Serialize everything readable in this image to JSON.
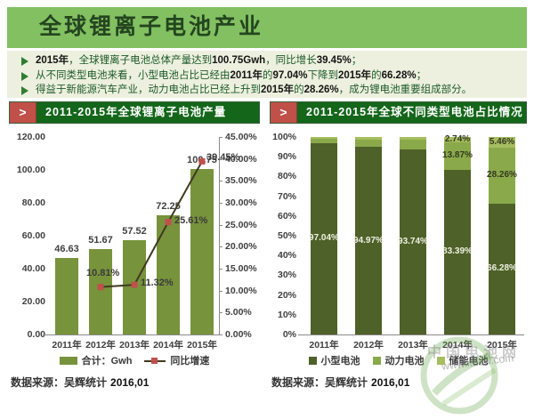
{
  "header": {
    "title": "全球锂离子电池产业"
  },
  "bullets": [
    {
      "segments": [
        {
          "t": "2015年",
          "b": true
        },
        {
          "t": "，全球锂离子电池总体产量达到",
          "b": false
        },
        {
          "t": "100.75Gwh",
          "b": true
        },
        {
          "t": "，同比增长",
          "b": false
        },
        {
          "t": "39.45%",
          "b": true
        },
        {
          "t": "；",
          "b": false
        }
      ]
    },
    {
      "segments": [
        {
          "t": "从不同类型电池来看，小型电池占比已经由",
          "b": false
        },
        {
          "t": "2011年",
          "b": true
        },
        {
          "t": "的",
          "b": false
        },
        {
          "t": "97.04%",
          "b": true
        },
        {
          "t": "下降到",
          "b": false
        },
        {
          "t": "2015年",
          "b": true
        },
        {
          "t": "的",
          "b": false
        },
        {
          "t": "66.28%",
          "b": true
        },
        {
          "t": "；",
          "b": false
        }
      ]
    },
    {
      "segments": [
        {
          "t": "得益于新能源汽车产业，动力电池占比已经上升到",
          "b": false
        },
        {
          "t": "2015年",
          "b": true
        },
        {
          "t": "的",
          "b": false
        },
        {
          "t": "28.26%",
          "b": true
        },
        {
          "t": "，成为锂电池重要组成部分。",
          "b": false
        }
      ]
    }
  ],
  "left_panel": {
    "marker": ">",
    "title": "2011-2015年全球锂离子电池产量",
    "source_label": "数据来源：吴辉统计",
    "source_date": "2016,01"
  },
  "right_panel": {
    "marker": ">",
    "title": "2011-2015年全球不同类型电池占比情况",
    "source_label": "数据来源：吴辉统计",
    "source_date": "2016,01"
  },
  "watermark": {
    "site": "中国电池网",
    "url": "www.itdcw.com"
  },
  "colors": {
    "header_green": "#82c062",
    "title_bar_green": "#14661a",
    "title_marker_red": "#c05048",
    "bar_olive": "#77933c",
    "line_dark": "#403a20",
    "marker_red": "#c0504d",
    "stack_dark": "#4e6128",
    "stack_mid": "#8aa94a",
    "stack_light": "#a6bd60"
  },
  "chart_data": [
    {
      "type": "bar",
      "subtype": "bar-with-line-overlay",
      "title": "2011-2015年全球锂离子电池产量",
      "categories": [
        "2011年",
        "2012年",
        "2013年",
        "2014年",
        "2015年"
      ],
      "series": [
        {
          "name": "合计：Gwh",
          "kind": "bar",
          "axis": "left",
          "color": "#77933c",
          "values": [
            46.63,
            51.67,
            57.52,
            72.25,
            100.75
          ],
          "labels": [
            "46.63",
            "51.67",
            "57.52",
            "72.25",
            "100.75"
          ]
        },
        {
          "name": "同比增速",
          "kind": "line",
          "axis": "right",
          "color": "#403a20",
          "marker_color": "#c0504d",
          "values": [
            null,
            10.81,
            11.32,
            25.61,
            39.45
          ],
          "labels": [
            null,
            "10.81%",
            "11.32%",
            "25.61%",
            "39.45%"
          ]
        }
      ],
      "left_axis": {
        "min": 0,
        "max": 120,
        "ticks": [
          "120.00",
          "100.00",
          "80.00",
          "60.00",
          "40.00",
          "20.00",
          "0.00"
        ]
      },
      "right_axis": {
        "min": 0,
        "max": 45,
        "ticks": [
          "45.00%",
          "40.00%",
          "35.00%",
          "30.00%",
          "25.00%",
          "20.00%",
          "15.00%",
          "10.00%",
          "5.00%",
          "0.00%"
        ]
      },
      "grid": false,
      "legend_position": "bottom",
      "legend": [
        "合计：Gwh",
        "同比增速"
      ],
      "source": "数据来源：吴辉统计 2016,01"
    },
    {
      "type": "bar",
      "subtype": "stacked-100-percent",
      "title": "2011-2015年全球不同类型电池占比情况",
      "categories": [
        "2011年",
        "2012年",
        "2013年",
        "2014年",
        "2015年"
      ],
      "series": [
        {
          "name": "小型电池",
          "color": "#4e6128",
          "label_color": "#eef0e2",
          "values": [
            97.04,
            94.97,
            93.74,
            83.39,
            66.28
          ],
          "labels": [
            "97.04%",
            "94.97%",
            "93.74%",
            "83.39%",
            "66.28%"
          ]
        },
        {
          "name": "动力电池",
          "color": "#8aa94a",
          "label_color": "#33391f",
          "values": [
            2.0,
            3.8,
            4.9,
            13.87,
            28.26
          ],
          "labels": [
            null,
            null,
            null,
            "13.87%",
            "28.26%"
          ]
        },
        {
          "name": "储能电池",
          "color": "#a6bd60",
          "label_color": "#33391f",
          "values": [
            0.96,
            1.23,
            1.36,
            2.74,
            5.46
          ],
          "labels": [
            null,
            null,
            null,
            "2.74%",
            "5.46%"
          ]
        }
      ],
      "y_axis": {
        "min": 0,
        "max": 100,
        "ticks": [
          "100%",
          "90%",
          "80%",
          "70%",
          "60%",
          "50%",
          "40%",
          "30%",
          "20%",
          "10%",
          "0%"
        ]
      },
      "grid": false,
      "legend_position": "bottom",
      "legend": [
        "小型电池",
        "动力电池",
        "储能电池"
      ],
      "source": "数据来源：吴辉统计 2016,01"
    }
  ]
}
